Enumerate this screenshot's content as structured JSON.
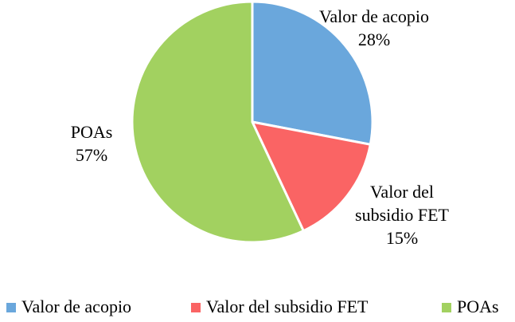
{
  "chart_data": {
    "type": "pie",
    "categories": [
      "Valor de acopio",
      "Valor del subsidio FET",
      "POAs"
    ],
    "values": [
      28,
      15,
      57
    ],
    "value_labels": [
      "28%",
      "15%",
      "57%"
    ],
    "colors": [
      "#6aa7dc",
      "#fa6464",
      "#a2d160"
    ],
    "legend": "bottom"
  }
}
